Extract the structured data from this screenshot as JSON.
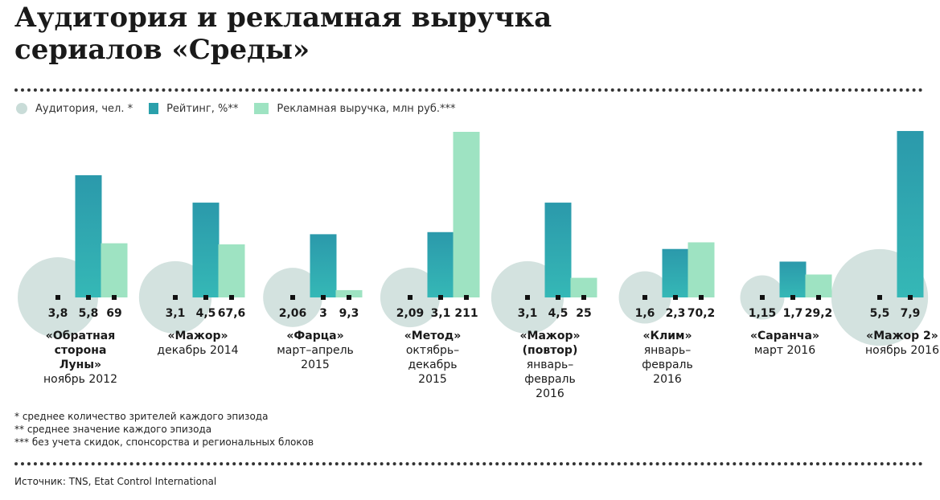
{
  "title_line1": "Аудитория и рекламная выручка",
  "title_line2": "сериалов «Среды»",
  "legend": {
    "audience": "Аудитория, чел. *",
    "rating": "Рейтинг, %**",
    "revenue": "Рекламная выручка, млн руб.***"
  },
  "colors": {
    "audience": "#c9dcd8",
    "rating": "#2aa0ab",
    "revenue": "#9ee3c2"
  },
  "chart_data": {
    "type": "bar",
    "categories": [
      {
        "name": [
          "«Обратная",
          "сторона",
          "Луны»"
        ],
        "period": [
          "ноябрь 2012"
        ]
      },
      {
        "name": [
          "«Мажор»"
        ],
        "period": [
          "декабрь 2014"
        ]
      },
      {
        "name": [
          "«Фарца»"
        ],
        "period": [
          "март–апрель",
          "2015"
        ]
      },
      {
        "name": [
          "«Метод»"
        ],
        "period": [
          "октябрь–",
          "декабрь",
          "2015"
        ]
      },
      {
        "name": [
          "«Мажор»",
          "(повтор)"
        ],
        "period": [
          "январь–",
          "февраль",
          "2016"
        ]
      },
      {
        "name": [
          "«Клим»"
        ],
        "period": [
          "январь–",
          "февраль",
          "2016"
        ]
      },
      {
        "name": [
          "«Саранча»"
        ],
        "period": [
          "март 2016"
        ]
      },
      {
        "name": [
          "«Мажор 2»"
        ],
        "period": [
          "ноябрь 2016"
        ]
      }
    ],
    "series": [
      {
        "name": "Аудитория, чел. *",
        "values": [
          3.8,
          3.1,
          2.06,
          2.09,
          3.1,
          1.6,
          1.15,
          5.5
        ],
        "labels": [
          "3,8",
          "3,1",
          "2,06",
          "2,09",
          "3,1",
          "1,6",
          "1,15",
          "5,5"
        ]
      },
      {
        "name": "Рейтинг, %**",
        "values": [
          5.8,
          4.5,
          3,
          3.1,
          4.5,
          2.3,
          1.7,
          7.9
        ],
        "labels": [
          "5,8",
          "4,5",
          "3",
          "3,1",
          "4,5",
          "2,3",
          "1,7",
          "7,9"
        ]
      },
      {
        "name": "Рекламная выручка, млн руб.***",
        "values": [
          69,
          67.6,
          9.3,
          211,
          25,
          70.2,
          29.2,
          null
        ],
        "labels": [
          "69",
          "67,6",
          "9,3",
          "211",
          "25",
          "70,2",
          "29,2",
          ""
        ]
      }
    ]
  },
  "footnotes": [
    "* среднее количество зрителей каждого эпизода",
    "** среднее значение каждого эпизода",
    "*** без учета скидок, спонсорства и региональных блоков"
  ],
  "source": "Источник: TNS, Etat Control International"
}
